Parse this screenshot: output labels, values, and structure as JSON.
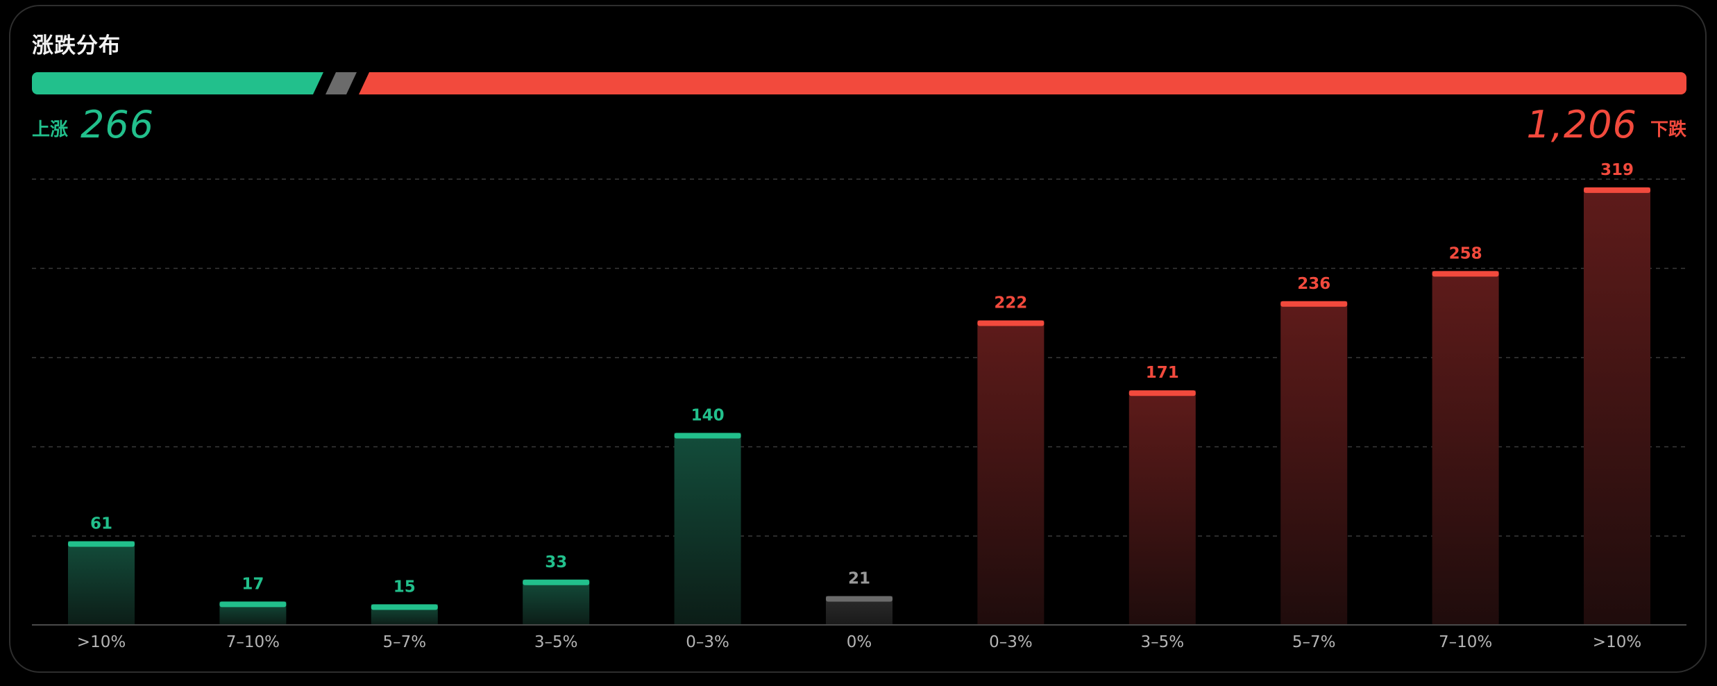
{
  "title": "涨跌分布",
  "summary": {
    "up_label": "上涨",
    "up_count": "266",
    "down_label": "下跌",
    "down_count": "1,206"
  },
  "colors": {
    "up": "#22c08c",
    "flat": "#6b6b6b",
    "down": "#f24a3d"
  },
  "chart_data": {
    "type": "bar",
    "categories": [
      ">10%",
      "7–10%",
      "5–7%",
      "3–5%",
      "0–3%",
      "0%",
      "0–3%",
      "3–5%",
      "5–7%",
      "7–10%",
      ">10%"
    ],
    "values": [
      61,
      17,
      15,
      33,
      140,
      21,
      222,
      171,
      236,
      258,
      319
    ],
    "groups": [
      "up",
      "up",
      "up",
      "up",
      "up",
      "flat",
      "down",
      "down",
      "down",
      "down",
      "down"
    ],
    "ylim": [
      0,
      325
    ],
    "grid": true
  }
}
